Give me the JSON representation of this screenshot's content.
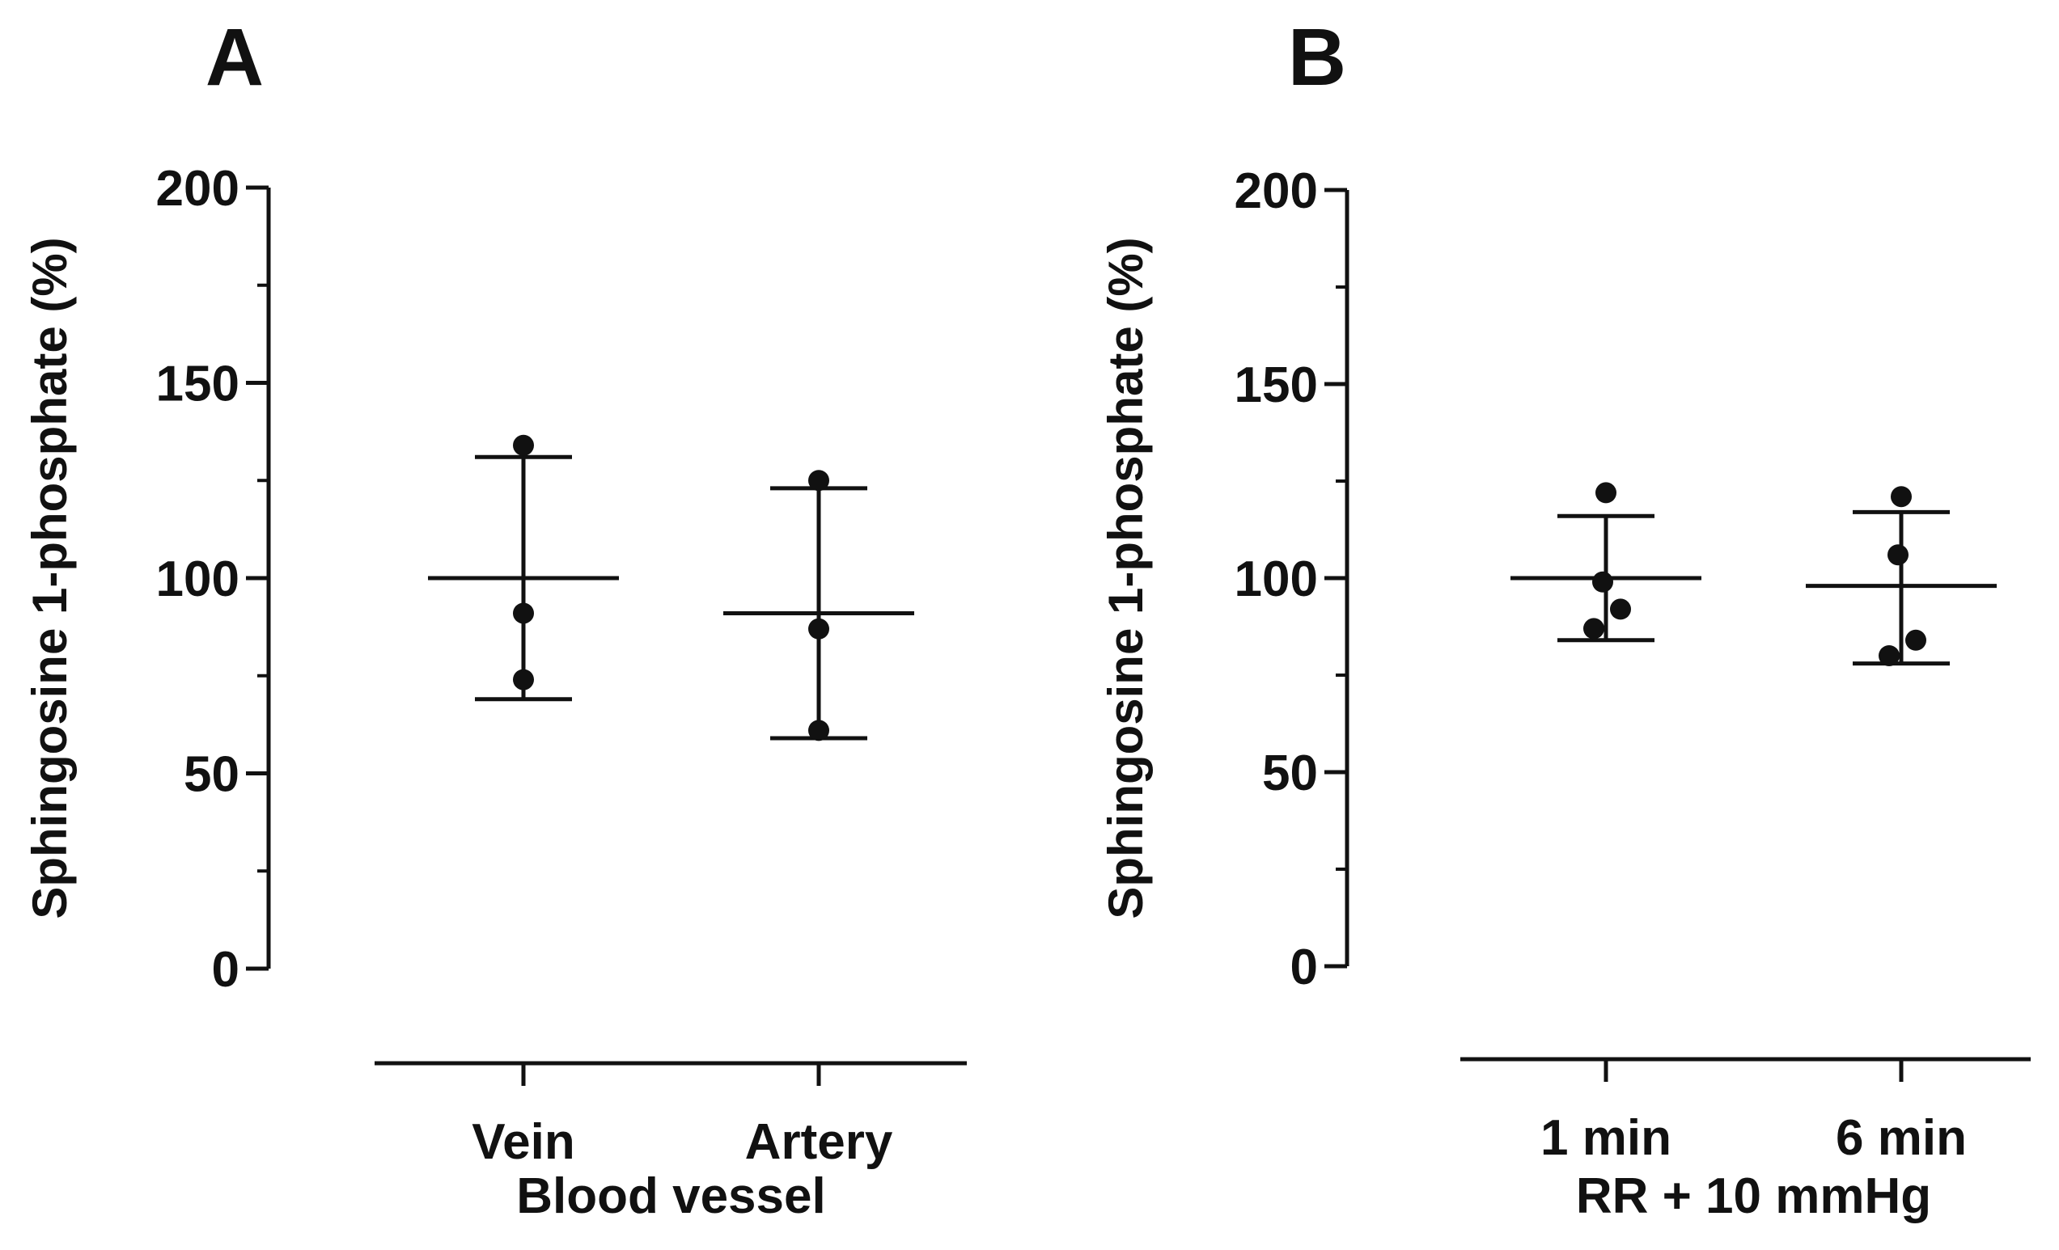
{
  "chart_data": [
    {
      "type": "scatter",
      "panel_label": "A",
      "ylabel": "Sphingosine 1-phosphate (%)",
      "xlabel": "Blood vessel",
      "ylim": [
        0,
        200
      ],
      "yticks": [
        0,
        50,
        100,
        150,
        200
      ],
      "categories": [
        "Vein",
        "Artery"
      ],
      "groups": [
        {
          "category": "Vein",
          "points": [
            134,
            91,
            74
          ],
          "mean": 100,
          "sd_upper": 131,
          "sd_lower": 69
        },
        {
          "category": "Artery",
          "points": [
            125,
            87,
            61
          ],
          "mean": 91,
          "sd_upper": 123,
          "sd_lower": 59
        }
      ]
    },
    {
      "type": "scatter",
      "panel_label": "B",
      "ylabel": "Sphingosine 1-phosphate (%)",
      "xlabel": "RR + 10 mmHg",
      "ylim": [
        0,
        200
      ],
      "yticks": [
        0,
        50,
        100,
        150,
        200
      ],
      "categories": [
        "1 min",
        "6 min"
      ],
      "groups": [
        {
          "category": "1 min",
          "points": [
            122,
            99,
            92,
            87
          ],
          "mean": 100,
          "sd_upper": 116,
          "sd_lower": 84
        },
        {
          "category": "6 min",
          "points": [
            121,
            106,
            84,
            80
          ],
          "mean": 98,
          "sd_upper": 117,
          "sd_lower": 78
        }
      ]
    }
  ],
  "colors": {
    "ink": "#111111",
    "background": "#ffffff"
  }
}
